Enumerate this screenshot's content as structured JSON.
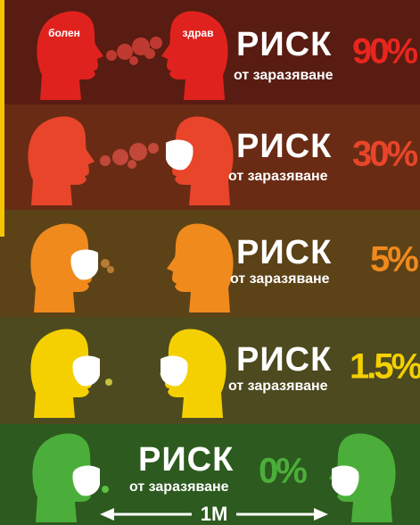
{
  "rows": [
    {
      "label": "РИСК",
      "sub": "от заразяване",
      "risk": "90%",
      "sick": "болен",
      "healthy": "здрав"
    },
    {
      "label": "РИСК",
      "sub": "от заразяване",
      "risk": "30%"
    },
    {
      "label": "РИСК",
      "sub": "от заразяване",
      "risk": "5%"
    },
    {
      "label": "РИСК",
      "sub": "от заразяване",
      "risk": "1.5%"
    },
    {
      "label": "РИСК",
      "sub": "от заразяване",
      "risk": "0%",
      "distance": "1М"
    }
  ]
}
